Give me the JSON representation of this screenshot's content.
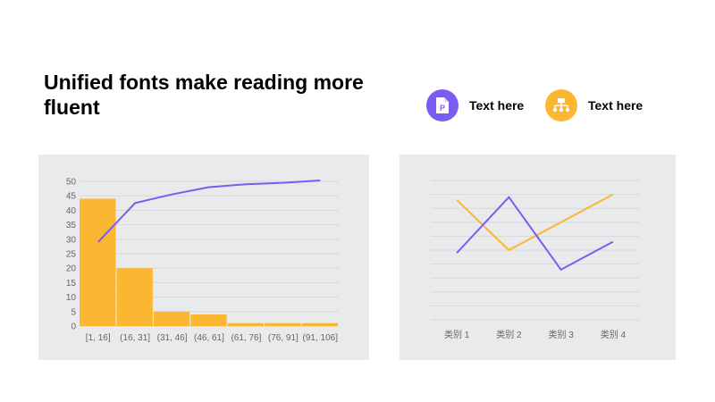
{
  "slide": {
    "title": "Unified fonts make reading more fluent"
  },
  "badges": [
    {
      "icon": "document-p-icon",
      "label": "Text here",
      "color": "#7b5cf0"
    },
    {
      "icon": "org-chart-icon",
      "label": "Text here",
      "color": "#fbb731"
    }
  ],
  "chart_data": [
    {
      "type": "bar",
      "subtype": "pareto-histogram",
      "categories": [
        "[1, 16]",
        "(16, 31]",
        "(31, 46]",
        "(46, 61]",
        "(61, 76]",
        "(76, 91]",
        "(91, 106]"
      ],
      "values": [
        44,
        20,
        5,
        4,
        1,
        1,
        1
      ],
      "cumulative_line": [
        29,
        42.5,
        45.5,
        48,
        49,
        49.5,
        50.3
      ],
      "ylim": [
        0,
        50
      ],
      "yticks": [
        0,
        5,
        10,
        15,
        20,
        25,
        30,
        35,
        40,
        45,
        50
      ],
      "grid": true,
      "colors": {
        "bar": "#fbb731",
        "line": "#7b5cf0",
        "grid": "#d6d7da"
      }
    },
    {
      "type": "line",
      "categories": [
        "类别 1",
        "类别 2",
        "类别 3",
        "类别 4"
      ],
      "series": [
        {
          "values": [
            4.3,
            2.5,
            3.5,
            4.5
          ],
          "color": "#fbb731"
        },
        {
          "values": [
            2.4,
            4.4,
            1.8,
            2.8
          ],
          "color": "#7b5cf0"
        }
      ],
      "ylim": [
        0,
        5
      ],
      "grid": true,
      "colors": {
        "grid": "#d6d7da"
      }
    }
  ]
}
